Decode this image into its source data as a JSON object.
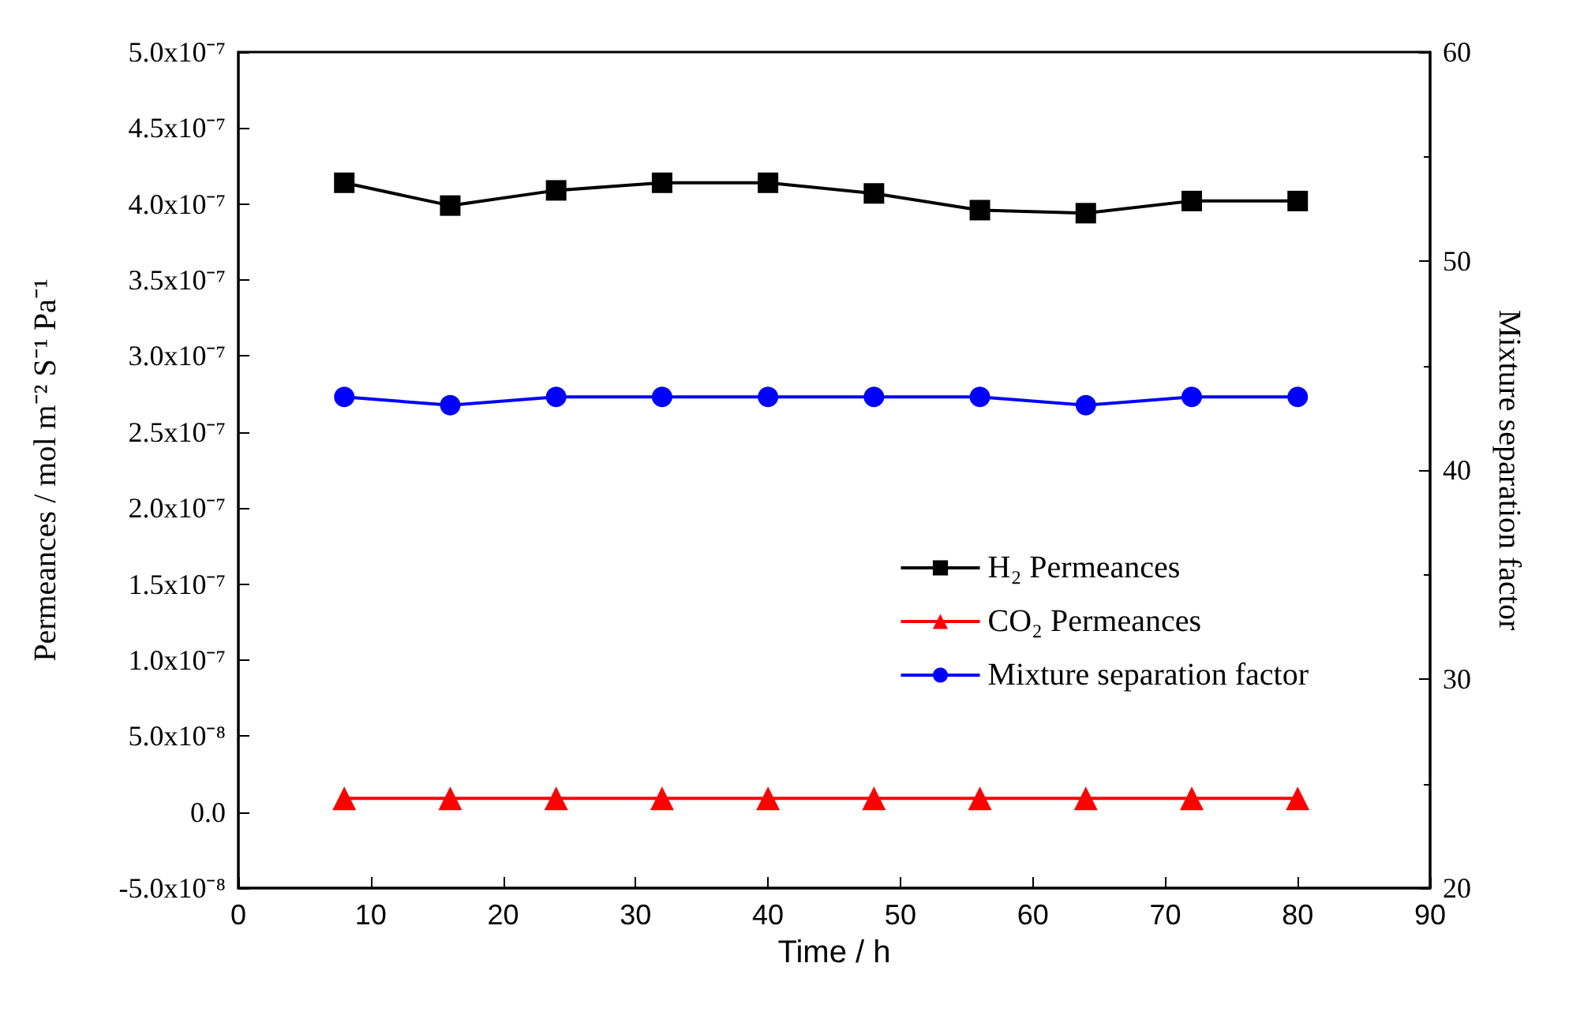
{
  "chart_data": {
    "type": "line",
    "xlabel": "Time / h",
    "ylabel": "Permeances / mol m⁻² S⁻¹ Pa⁻¹",
    "y2label": "Mixture separation factor",
    "x": [
      8,
      16,
      24,
      32,
      40,
      48,
      56,
      64,
      72,
      80
    ],
    "series": [
      {
        "name": "H₂ Permeances",
        "color": "#000000",
        "marker": "square",
        "values": [
          4.14e-07,
          3.99e-07,
          4.09e-07,
          4.14e-07,
          4.14e-07,
          4.07e-07,
          3.96e-07,
          3.94e-07,
          4.02e-07,
          4.02e-07
        ]
      },
      {
        "name": "CO₂ Permeances",
        "color": "#ff0000",
        "marker": "triangle",
        "values": [
          9e-09,
          9e-09,
          9e-09,
          9e-09,
          9e-09,
          9e-09,
          9e-09,
          9e-09,
          9e-09,
          9e-09
        ]
      },
      {
        "name": "Mixture separation factor",
        "color": "#0000ff",
        "marker": "circle",
        "axis": "y2",
        "values": [
          43.5,
          43.1,
          43.5,
          43.5,
          43.5,
          43.5,
          43.5,
          43.1,
          43.5,
          43.5
        ]
      }
    ],
    "xlim": [
      0,
      90
    ],
    "xticks": [
      0,
      10,
      20,
      30,
      40,
      50,
      60,
      70,
      80,
      90
    ],
    "ylim": [
      -5e-08,
      5e-07
    ],
    "yticks": [
      {
        "value": -5e-08,
        "label": "-5.0x10⁻⁸"
      },
      {
        "value": 0,
        "label": "0.0"
      },
      {
        "value": 5e-08,
        "label": "5.0x10⁻⁸"
      },
      {
        "value": 1e-07,
        "label": "1.0x10⁻⁷"
      },
      {
        "value": 1.5e-07,
        "label": "1.5x10⁻⁷"
      },
      {
        "value": 2e-07,
        "label": "2.0x10⁻⁷"
      },
      {
        "value": 2.5e-07,
        "label": "2.5x10⁻⁷"
      },
      {
        "value": 3e-07,
        "label": "3.0x10⁻⁷"
      },
      {
        "value": 3.5e-07,
        "label": "3.5x10⁻⁷"
      },
      {
        "value": 4e-07,
        "label": "4.0x10⁻⁷"
      },
      {
        "value": 4.5e-07,
        "label": "4.5x10⁻⁷"
      },
      {
        "value": 5e-07,
        "label": "5.0x10⁻⁷"
      }
    ],
    "y2lim": [
      20,
      60
    ],
    "y2ticks": [
      20,
      30,
      40,
      50,
      60
    ],
    "grid": false,
    "legend": "right",
    "line_style": "solid"
  }
}
